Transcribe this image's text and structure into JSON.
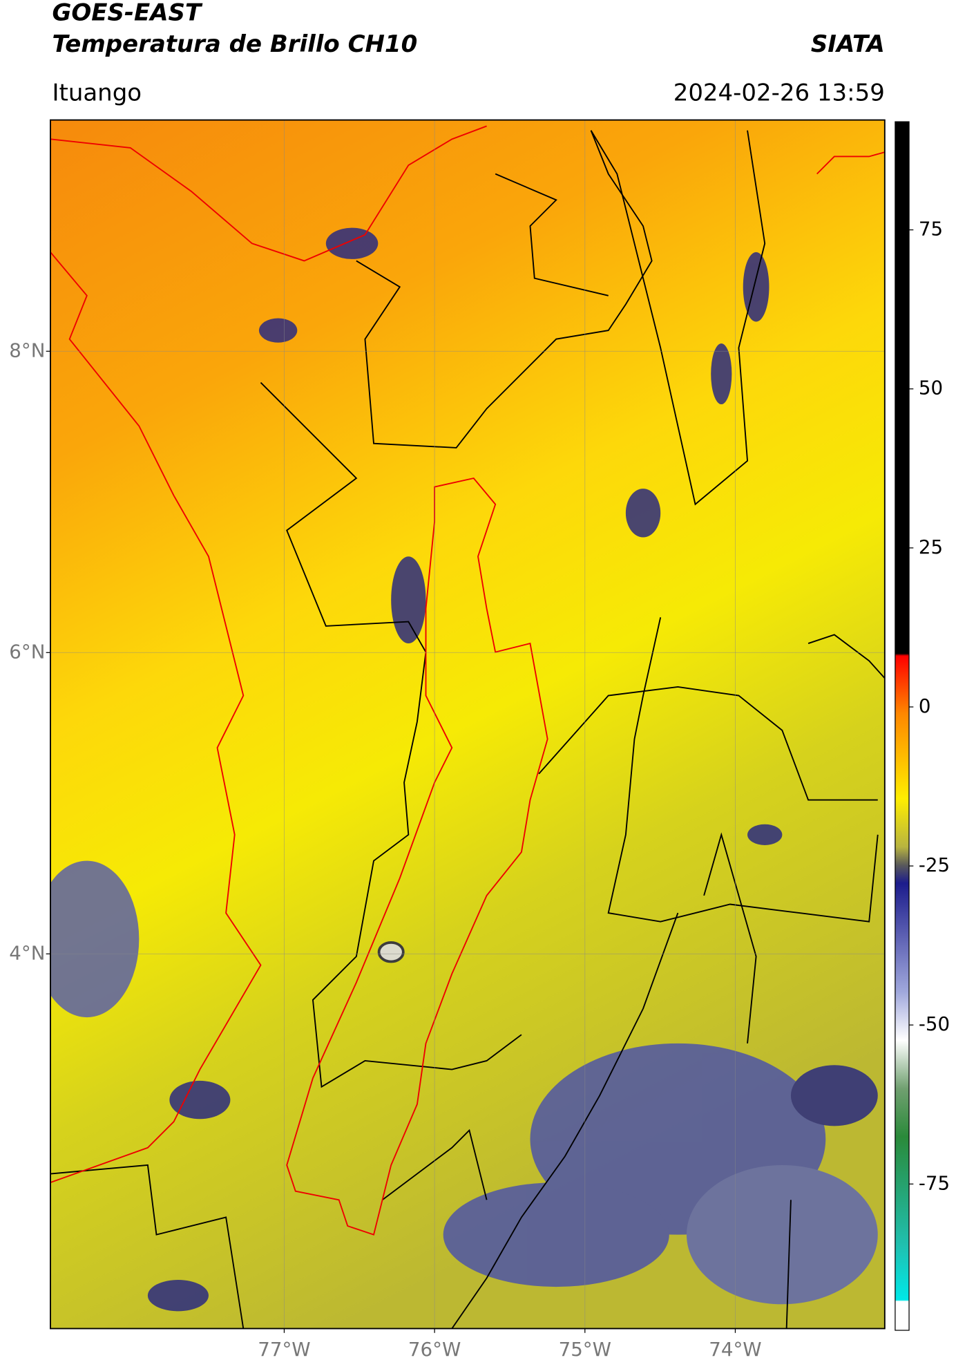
{
  "header": {
    "title": "GOES-EAST",
    "subtitle": "Temperatura de Brillo CH10",
    "organization": "SIATA",
    "location": "Ituango",
    "datetime": "2024-02-26 13:59"
  },
  "map": {
    "xlim": [
      -78.555,
      -73.006
    ],
    "ylim": [
      1.513,
      9.535
    ],
    "xticks": [
      {
        "value": -77,
        "label": "77°W"
      },
      {
        "value": -76,
        "label": "76°W"
      },
      {
        "value": -75,
        "label": "75°W"
      },
      {
        "value": -74,
        "label": "74°W"
      }
    ],
    "yticks": [
      {
        "value": 8,
        "label": "8°N"
      },
      {
        "value": 6,
        "label": "6°N"
      },
      {
        "value": 4,
        "label": "4°N"
      }
    ]
  },
  "colorbar": {
    "lim": [
      -98,
      92
    ],
    "ticks": [
      75,
      50,
      25,
      0,
      -25,
      -50,
      -75
    ]
  }
}
